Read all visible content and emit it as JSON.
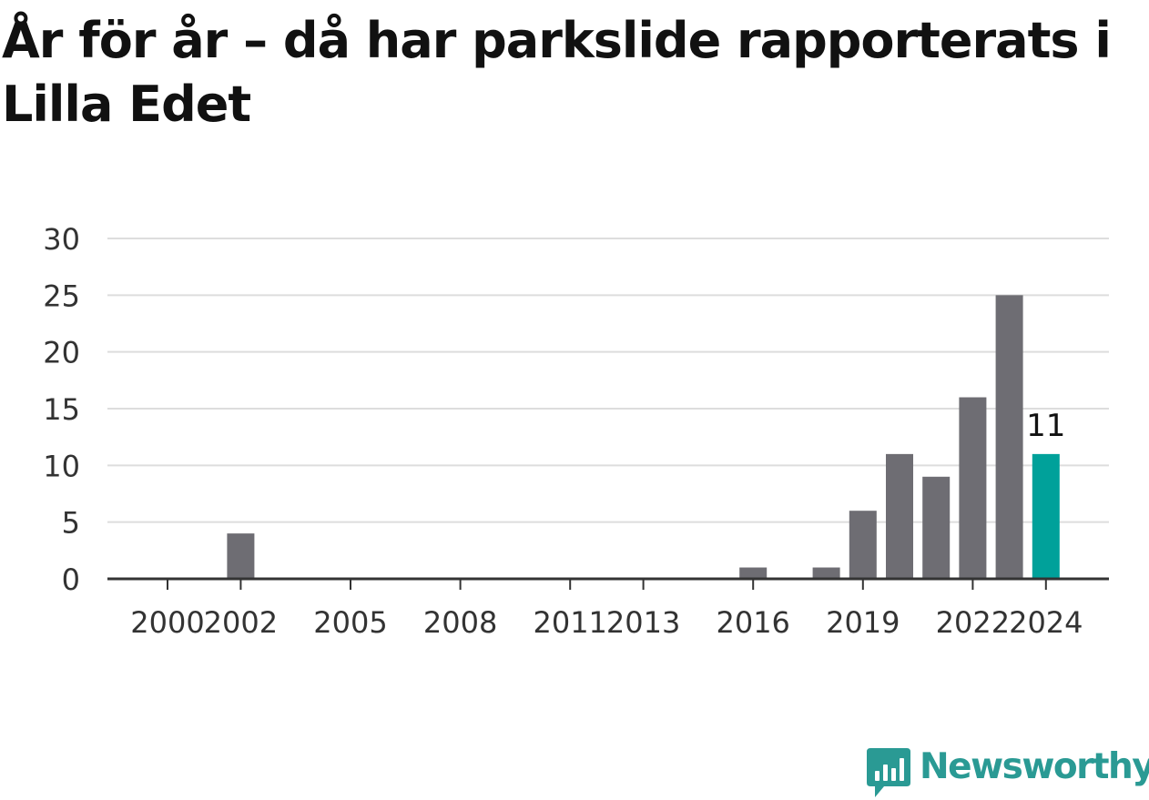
{
  "title": "År för år – då har parkslide rapporterats i Lilla Edet",
  "brand": {
    "name": "Newsworthy",
    "icon": "newsworthy-logo-icon",
    "color": "#2a9a94"
  },
  "colors": {
    "bar": "#6e6d73",
    "highlight": "#00a19a",
    "grid": "#dddddd",
    "axis": "#333333",
    "tick_text": "#333333"
  },
  "chart_data": {
    "type": "bar",
    "categories": [
      "2000",
      "2001",
      "2002",
      "2003",
      "2004",
      "2005",
      "2006",
      "2007",
      "2008",
      "2009",
      "2010",
      "2011",
      "2012",
      "2013",
      "2014",
      "2015",
      "2016",
      "2017",
      "2018",
      "2019",
      "2020",
      "2021",
      "2022",
      "2023",
      "2024"
    ],
    "values": [
      0,
      0,
      4,
      0,
      0,
      0,
      0,
      0,
      0,
      0,
      0,
      0,
      0,
      0,
      0,
      0,
      1,
      0,
      1,
      6,
      11,
      9,
      16,
      25,
      11
    ],
    "x_tick_labels": [
      "2000",
      "2002",
      "2005",
      "2008",
      "2011",
      "2013",
      "2016",
      "2019",
      "2022",
      "2024"
    ],
    "y_ticks": [
      0,
      5,
      10,
      15,
      20,
      25,
      30
    ],
    "ylim": [
      0,
      30
    ],
    "highlight_category": "2024",
    "highlight_label": "11",
    "grid": true,
    "legend": "none",
    "xlabel": "",
    "ylabel": ""
  }
}
